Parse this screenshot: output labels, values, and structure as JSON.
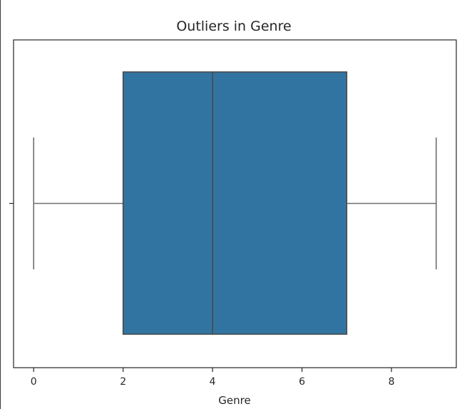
{
  "chart_data": {
    "type": "box",
    "title": "Outliers in Genre",
    "xlabel": "Genre",
    "ylabel": "",
    "orientation": "horizontal",
    "xlim": [
      -0.45,
      9.45
    ],
    "xticks": [
      0,
      2,
      4,
      6,
      8
    ],
    "xtick_labels": [
      "0",
      "2",
      "4",
      "6",
      "8"
    ],
    "grid": false,
    "legend": "none",
    "boxes": [
      {
        "whisker_low": 0,
        "q1": 2,
        "median": 4,
        "q3": 7,
        "whisker_high": 9,
        "outliers": []
      }
    ],
    "colors": {
      "box_fill": "#3274a1",
      "box_edge": "#4a4a4a",
      "whisker": "#6e6e6e",
      "axes": "#262626"
    }
  }
}
